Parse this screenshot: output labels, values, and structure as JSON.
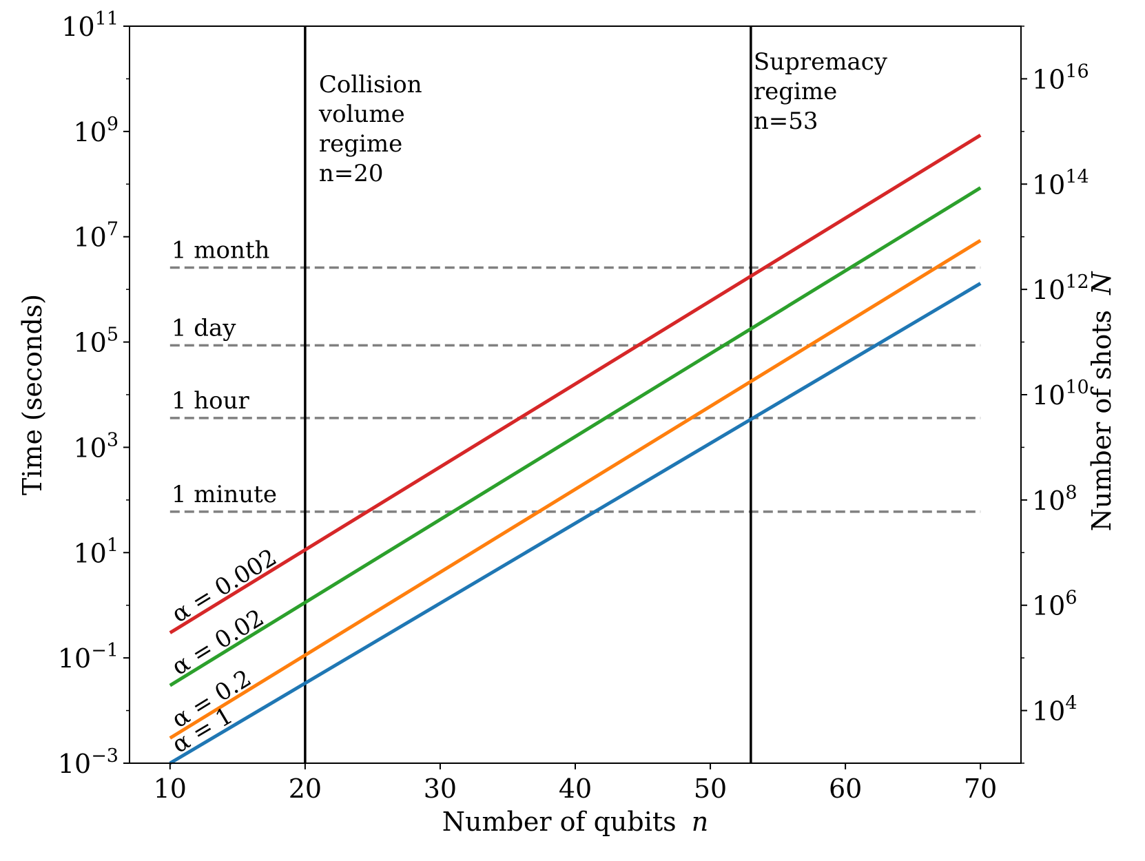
{
  "chart_data": {
    "type": "line",
    "xlabel_text": "Number of qubits",
    "xlabel_var": "n",
    "ylabel": "Time (seconds)",
    "y2label_text": "Number of shots",
    "y2label_var": "N",
    "xlim": [
      7,
      73
    ],
    "ylim_log10": [
      -3,
      11
    ],
    "y2lim_log10": [
      3,
      17
    ],
    "x_ticks": [
      10,
      20,
      30,
      40,
      50,
      60,
      70
    ],
    "y_ticks": [
      {
        "base": "10",
        "exp": "11",
        "log": 11
      },
      {
        "base": "10",
        "exp": "9",
        "log": 9
      },
      {
        "base": "10",
        "exp": "7",
        "log": 7
      },
      {
        "base": "10",
        "exp": "5",
        "log": 5
      },
      {
        "base": "10",
        "exp": "3",
        "log": 3
      },
      {
        "base": "10",
        "exp": "1",
        "log": 1
      },
      {
        "base": "10",
        "exp": "−1",
        "log": -1
      },
      {
        "base": "10",
        "exp": "−3",
        "log": -3
      }
    ],
    "y2_ticks": [
      {
        "base": "10",
        "exp": "16",
        "log": 16
      },
      {
        "base": "10",
        "exp": "14",
        "log": 14
      },
      {
        "base": "10",
        "exp": "12",
        "log": 12
      },
      {
        "base": "10",
        "exp": "10",
        "log": 10
      },
      {
        "base": "10",
        "exp": "8",
        "log": 8
      },
      {
        "base": "10",
        "exp": "6",
        "log": 6
      },
      {
        "base": "10",
        "exp": "4",
        "log": 4
      }
    ],
    "series": [
      {
        "name": "α = 0.002",
        "color": "#d62728",
        "x": [
          10,
          70
        ],
        "y": [
          0.3,
          850000000.0
        ]
      },
      {
        "name": "α = 0.02",
        "color": "#2ca02c",
        "x": [
          10,
          70
        ],
        "y": [
          0.03,
          85000000.0
        ]
      },
      {
        "name": "α = 0.2",
        "color": "#ff7f0e",
        "x": [
          10,
          70
        ],
        "y": [
          0.003,
          8500000.0
        ]
      },
      {
        "name": "α = 1",
        "color": "#1f77b4",
        "x": [
          10,
          70
        ],
        "y": [
          0.001,
          1300000.0
        ]
      }
    ],
    "hlines": [
      {
        "label": "1 minute",
        "y": 60
      },
      {
        "label": "1 hour",
        "y": 3600
      },
      {
        "label": "1 day",
        "y": 86400
      },
      {
        "label": "1 month",
        "y": 2592000
      }
    ],
    "hline_color": "#808080",
    "vlines": [
      {
        "x": 20,
        "label_lines": [
          "Collision",
          "volume",
          "regime",
          "n=20"
        ]
      },
      {
        "x": 53,
        "label_lines": [
          "Supremacy",
          "regime",
          "n=53"
        ]
      }
    ],
    "grid": false
  }
}
